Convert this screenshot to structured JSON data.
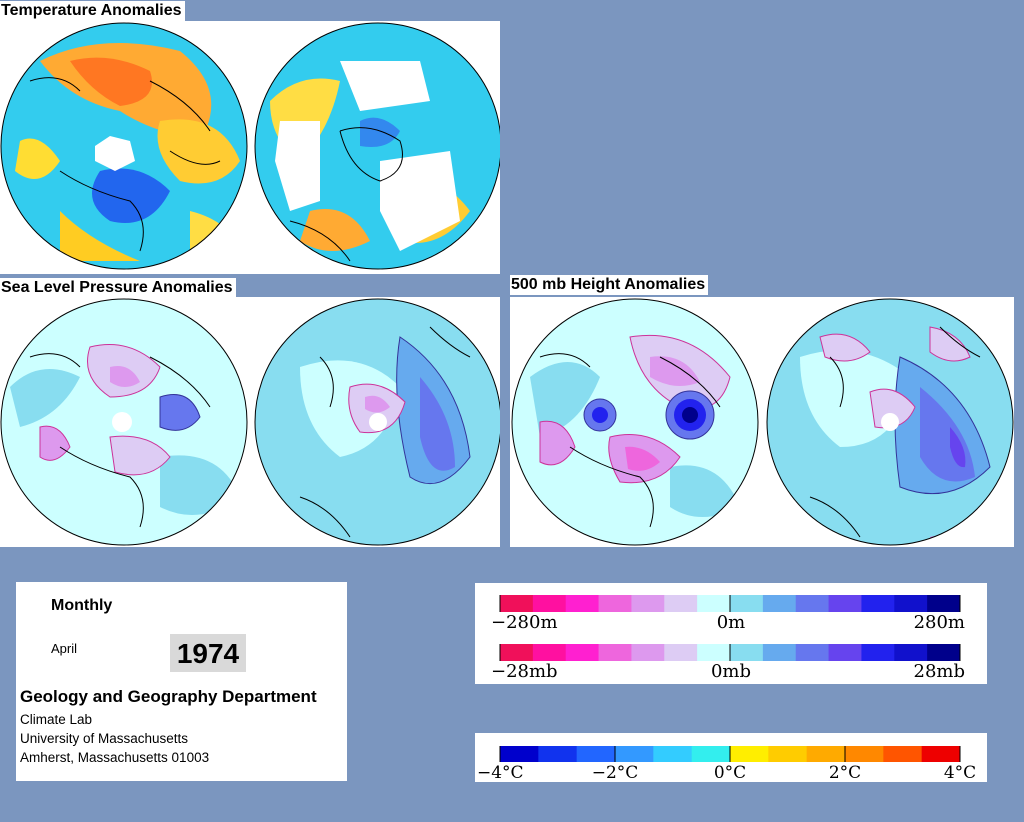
{
  "panels": {
    "temperature": {
      "title": "Temperature Anomalies"
    },
    "slp": {
      "title": "Sea Level Pressure Anomalies"
    },
    "height500": {
      "title": "500 mb Height Anomalies"
    }
  },
  "info": {
    "period": "Monthly",
    "month": "April",
    "year": "1974",
    "department": "Geology and Geography Department",
    "lab": "Climate Lab",
    "university": "University of Massachusetts",
    "address": "Amherst, Massachusetts 01003"
  },
  "legends": {
    "height": {
      "min_label": "−280m",
      "mid_label": "0m",
      "max_label": "280m"
    },
    "pressure": {
      "min_label": "−28mb",
      "mid_label": "0mb",
      "max_label": "28mb"
    },
    "temperature": {
      "labels": [
        "−4°C",
        "−2°C",
        "0°C",
        "2°C",
        "4°C"
      ]
    }
  },
  "colors": {
    "background": "#7b96bf",
    "anomaly_scale": [
      "#f0105a",
      "#ff10a0",
      "#ff20d0",
      "#ee66dd",
      "#dd99ee",
      "#ddccf4",
      "#ccffff",
      "#88ddf0",
      "#66aaee",
      "#6677ee",
      "#6644ee",
      "#2222ee",
      "#1111cc",
      "#00008b"
    ],
    "temperature_scale": [
      "#0000cc",
      "#1133ee",
      "#2266ff",
      "#3399ff",
      "#33ccff",
      "#33eeee",
      "#ffee00",
      "#ffcc00",
      "#ffaa00",
      "#ff8800",
      "#ff5500",
      "#ee0000"
    ]
  }
}
